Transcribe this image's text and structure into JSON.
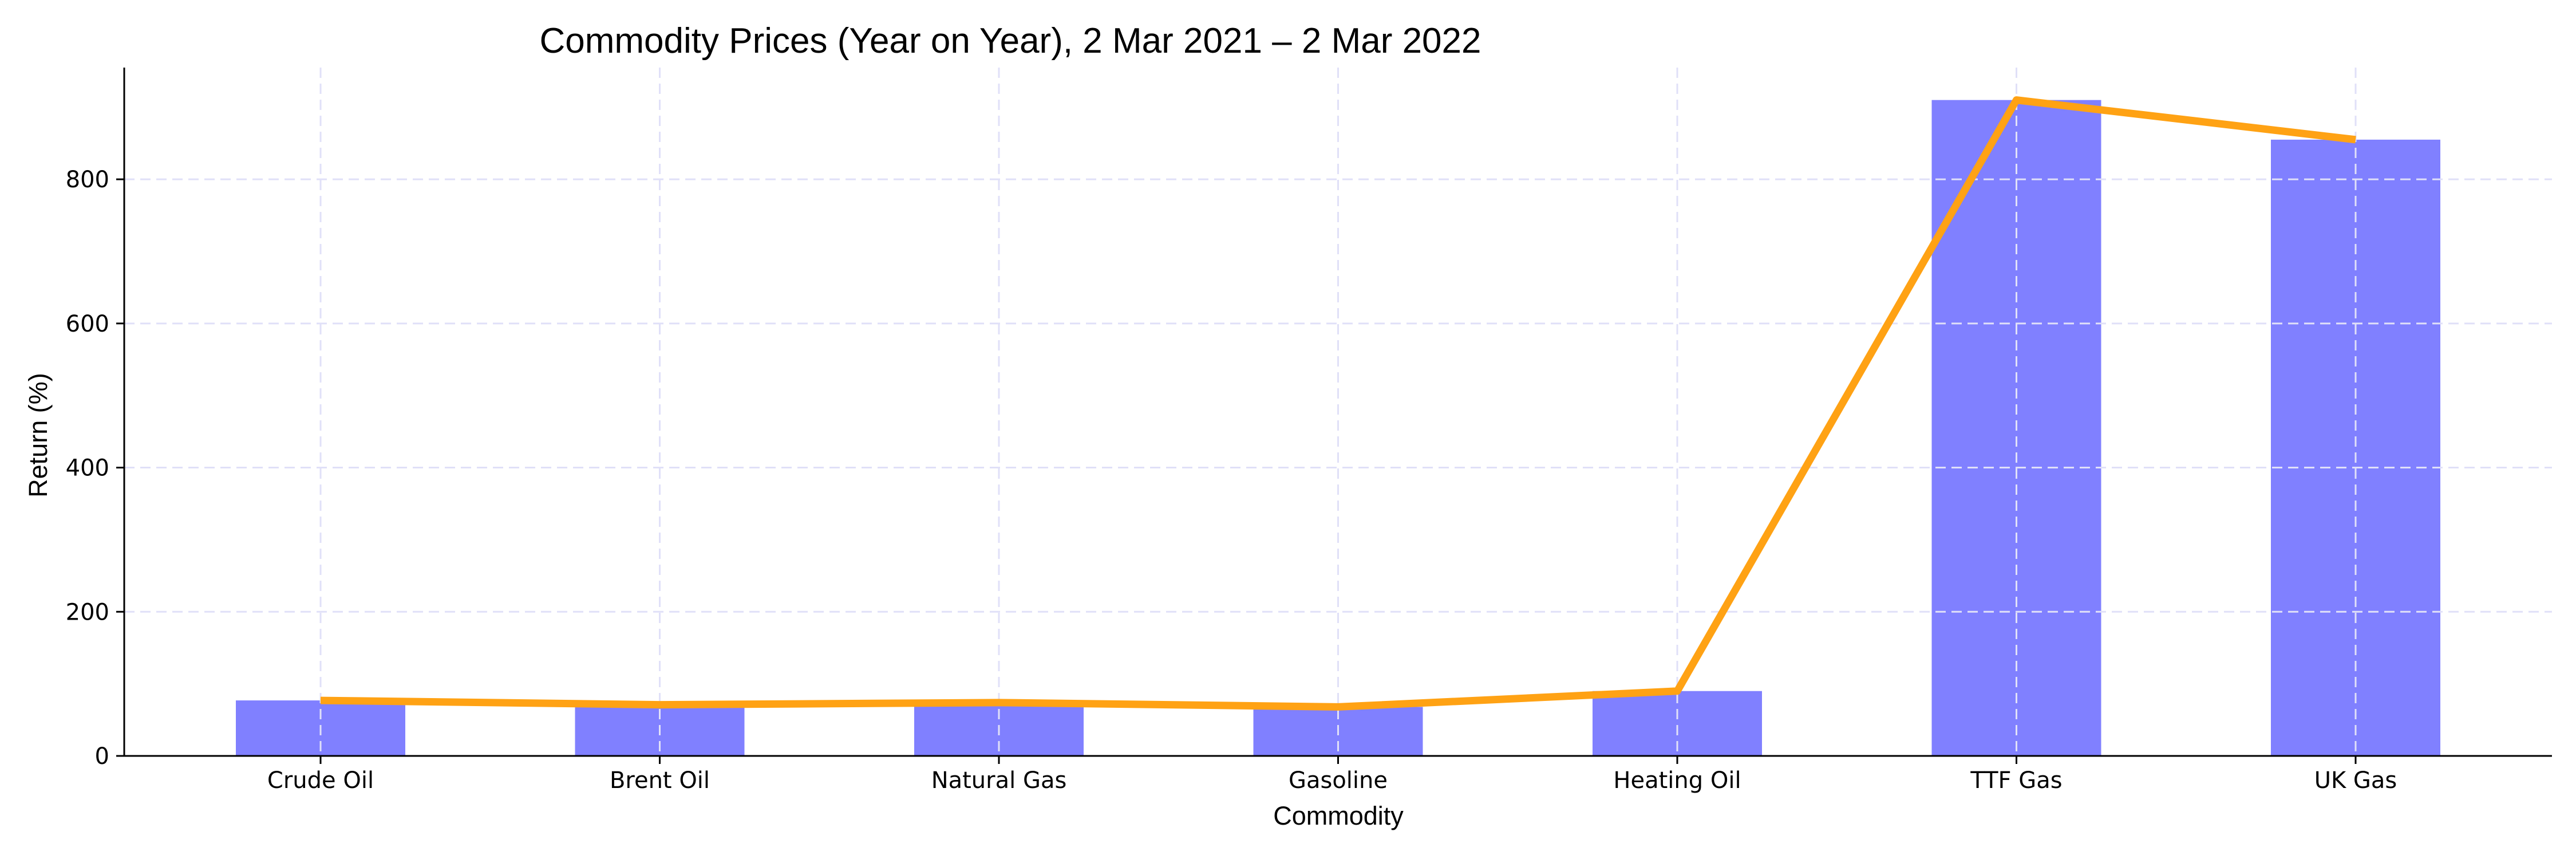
{
  "chart_data": {
    "type": "bar",
    "title": "Commodity Prices (Year on Year), 2 Mar 2021 – 2 Mar 2022",
    "xlabel": "Commodity",
    "ylabel": "Return (%)",
    "categories": [
      "Crude Oil",
      "Brent Oil",
      "Natural Gas",
      "Gasoline",
      "Heating Oil",
      "TTF Gas",
      "UK Gas"
    ],
    "values": [
      77,
      71,
      74,
      68,
      90,
      910,
      855
    ],
    "line_values": [
      77,
      71,
      74,
      68,
      90,
      910,
      855
    ],
    "ylim": [
      0,
      955
    ],
    "yticks": [
      0,
      200,
      400,
      600,
      800
    ],
    "grid": true,
    "bar_color": "#8080ff",
    "line_color": "#ffa214"
  }
}
